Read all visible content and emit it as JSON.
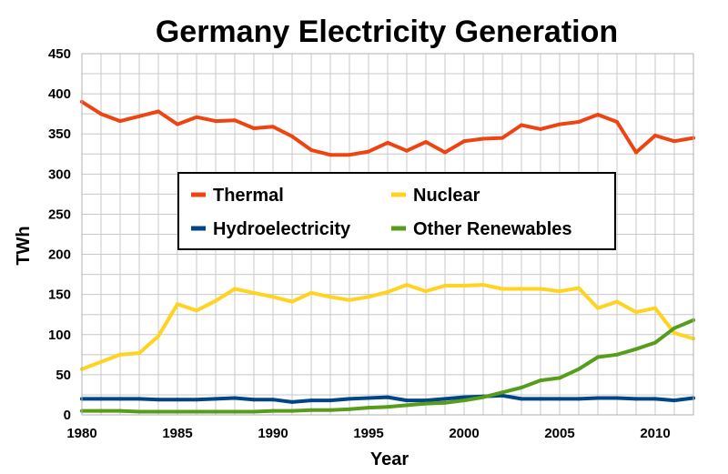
{
  "chart_data": {
    "type": "line",
    "title": "Germany Electricity Generation",
    "xlabel": "Year",
    "ylabel": "TWh",
    "xlim": [
      1980,
      2012
    ],
    "ylim": [
      0,
      450
    ],
    "x_ticks": [
      1980,
      1985,
      1990,
      1995,
      2000,
      2005,
      2010
    ],
    "y_ticks": [
      0,
      50,
      100,
      150,
      200,
      250,
      300,
      350,
      400,
      450
    ],
    "grid": true,
    "legend_position": "center",
    "x": [
      1980,
      1981,
      1982,
      1983,
      1984,
      1985,
      1986,
      1987,
      1988,
      1989,
      1990,
      1991,
      1992,
      1993,
      1994,
      1995,
      1996,
      1997,
      1998,
      1999,
      2000,
      2001,
      2002,
      2003,
      2004,
      2005,
      2006,
      2007,
      2008,
      2009,
      2010,
      2011,
      2012
    ],
    "series": [
      {
        "name": "Thermal",
        "color": "#ee4411",
        "values": [
          390,
          375,
          366,
          372,
          378,
          362,
          371,
          366,
          367,
          357,
          359,
          347,
          330,
          324,
          324,
          328,
          339,
          329,
          340,
          327,
          341,
          344,
          345,
          361,
          356,
          362,
          365,
          374,
          365,
          327,
          348,
          341,
          345
        ]
      },
      {
        "name": "Nuclear",
        "color": "#ffd320",
        "values": [
          57,
          66,
          75,
          77,
          98,
          138,
          130,
          142,
          157,
          152,
          147,
          141,
          152,
          147,
          143,
          147,
          153,
          162,
          154,
          161,
          161,
          162,
          157,
          157,
          157,
          154,
          158,
          133,
          141,
          128,
          133,
          102,
          95
        ]
      },
      {
        "name": "Hydroelectricity",
        "color": "#004586",
        "values": [
          20,
          20,
          20,
          20,
          19,
          19,
          19,
          20,
          21,
          19,
          19,
          16,
          18,
          18,
          20,
          21,
          22,
          18,
          18,
          20,
          22,
          23,
          24,
          20,
          20,
          20,
          20,
          21,
          21,
          20,
          20,
          18,
          21
        ]
      },
      {
        "name": "Other Renewables",
        "color": "#579d1c",
        "values": [
          5,
          5,
          5,
          4,
          4,
          4,
          4,
          4,
          4,
          4,
          5,
          5,
          6,
          6,
          7,
          9,
          10,
          12,
          14,
          15,
          18,
          22,
          28,
          34,
          43,
          46,
          57,
          72,
          75,
          82,
          90,
          108,
          118
        ]
      }
    ]
  }
}
